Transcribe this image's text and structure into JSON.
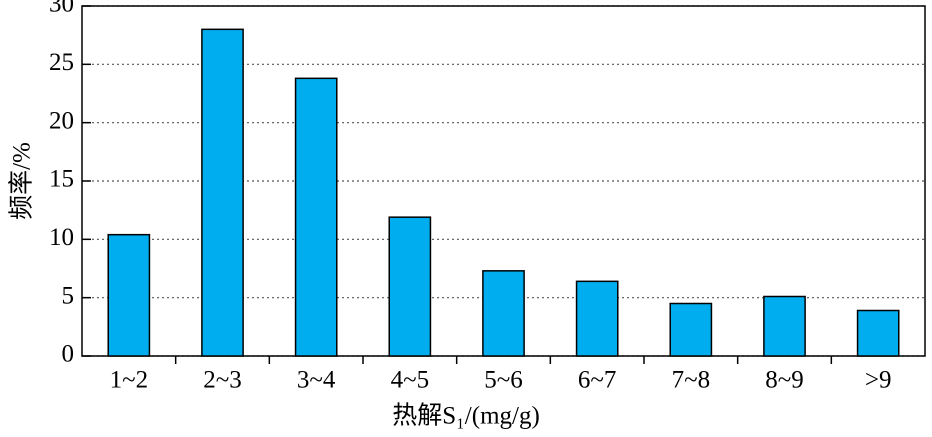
{
  "chart_data": {
    "type": "bar",
    "x_label": "热解S₁/(mg/g)",
    "y_label": "频率/%",
    "categories": [
      "1~2",
      "2~3",
      "3~4",
      "4~5",
      "5~6",
      "6~7",
      "7~8",
      "8~9",
      ">9"
    ],
    "values": [
      10.4,
      28,
      23.8,
      11.9,
      7.3,
      6.4,
      4.5,
      5.1,
      3.9
    ],
    "color": "#00aeef",
    "ylim": [
      0,
      30
    ],
    "yticks": [
      0,
      5,
      10,
      15,
      20,
      25,
      30
    ],
    "grid": true
  }
}
